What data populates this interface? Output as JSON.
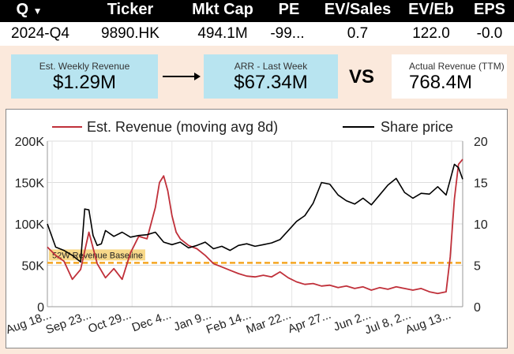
{
  "header": {
    "col_q": "Q",
    "col_ticker": "Ticker",
    "col_mktcap": "Mkt Cap",
    "col_pe": "PE",
    "col_evsales": "EV/Sales",
    "col_eveb": "EV/Eb",
    "col_eps": "EPS"
  },
  "row": {
    "q": "2024-Q4",
    "ticker": "9890.HK",
    "mktcap": "494.1M",
    "pe": "-99...",
    "evsales": "0.7",
    "eveb": "122.0",
    "eps": "-0.0"
  },
  "cards": {
    "weekly_label": "Est. Weekly Revenue",
    "weekly_value": "$1.29M",
    "arr_label": "ARR - Last Week",
    "arr_value": "$67.34M",
    "vs": "VS",
    "actual_label": "Actual Revenue (TTM)",
    "actual_value": "768.4M"
  },
  "chart_data": {
    "type": "line",
    "legend": [
      "Est. Revenue (moving avg 8d)",
      "Share price"
    ],
    "legend_position": "top",
    "colors": {
      "revenue": "#c0303a",
      "price": "#000000",
      "baseline": "#f5a623"
    },
    "y_left": {
      "ticks": [
        "200K",
        "150K",
        "100K",
        "50K",
        "0"
      ],
      "range": [
        0,
        200000
      ]
    },
    "y_right": {
      "ticks": [
        "20",
        "15",
        "10",
        "5",
        "0"
      ],
      "range": [
        0,
        20
      ]
    },
    "x_ticks": [
      "Aug 18...",
      "Sep 23...",
      "Oct 29...",
      "Dec 4...",
      "Jan 9...",
      "Feb 14...",
      "Mar 22...",
      "Apr 27...",
      "Jun 2...",
      "Jul 8, 2...",
      "Aug 13..."
    ],
    "baseline_label": "52W Revenue Baseline",
    "baseline_value": 53000,
    "series": [
      {
        "name": "Est. Revenue (moving avg 8d)",
        "axis": "left",
        "x": [
          0,
          2,
          4,
          6,
          8,
          10,
          12,
          14,
          16,
          18,
          20,
          22,
          24,
          26,
          27,
          28,
          29,
          30,
          31,
          32,
          34,
          36,
          38,
          40,
          42,
          44,
          46,
          48,
          50,
          52,
          54,
          56,
          58,
          60,
          62,
          64,
          66,
          68,
          70,
          72,
          74,
          76,
          78,
          80,
          82,
          84,
          86,
          88,
          90,
          92,
          94,
          96,
          97,
          98,
          99,
          100
        ],
        "values": [
          72000,
          62000,
          55000,
          33000,
          45000,
          90000,
          52000,
          35000,
          46000,
          33000,
          65000,
          85000,
          82000,
          120000,
          150000,
          158000,
          140000,
          110000,
          90000,
          82000,
          74000,
          70000,
          62000,
          52000,
          48000,
          44000,
          40000,
          37000,
          36000,
          38000,
          36000,
          42000,
          35000,
          30000,
          27000,
          28000,
          25000,
          26000,
          23000,
          25000,
          22000,
          24000,
          20000,
          23000,
          21000,
          24000,
          22000,
          20000,
          22000,
          18000,
          16000,
          18000,
          60000,
          130000,
          172000,
          178000
        ]
      },
      {
        "name": "Share price",
        "axis": "right",
        "x": [
          0,
          2,
          4,
          6,
          8,
          9,
          10,
          11,
          12,
          13,
          14,
          16,
          18,
          20,
          22,
          24,
          26,
          28,
          30,
          32,
          34,
          36,
          38,
          40,
          42,
          44,
          46,
          48,
          50,
          52,
          54,
          56,
          58,
          60,
          62,
          64,
          66,
          68,
          70,
          72,
          74,
          76,
          78,
          80,
          82,
          84,
          86,
          88,
          90,
          92,
          94,
          96,
          98,
          99,
          100
        ],
        "values": [
          10,
          7.2,
          6.8,
          6.2,
          5.4,
          11.8,
          11.7,
          8.6,
          7.4,
          7.6,
          9.2,
          8.5,
          9.0,
          8.4,
          8.6,
          8.7,
          9.0,
          7.8,
          7.5,
          7.8,
          7.1,
          7.4,
          7.8,
          7.0,
          7.3,
          6.8,
          7.4,
          7.6,
          7.3,
          7.5,
          7.7,
          8.1,
          9.2,
          10.3,
          11.0,
          12.5,
          15.0,
          14.8,
          13.5,
          12.8,
          12.4,
          13.1,
          12.3,
          13.5,
          14.7,
          15.5,
          13.8,
          13.1,
          13.7,
          13.6,
          14.5,
          13.5,
          17.2,
          16.8,
          15.4
        ]
      }
    ]
  }
}
